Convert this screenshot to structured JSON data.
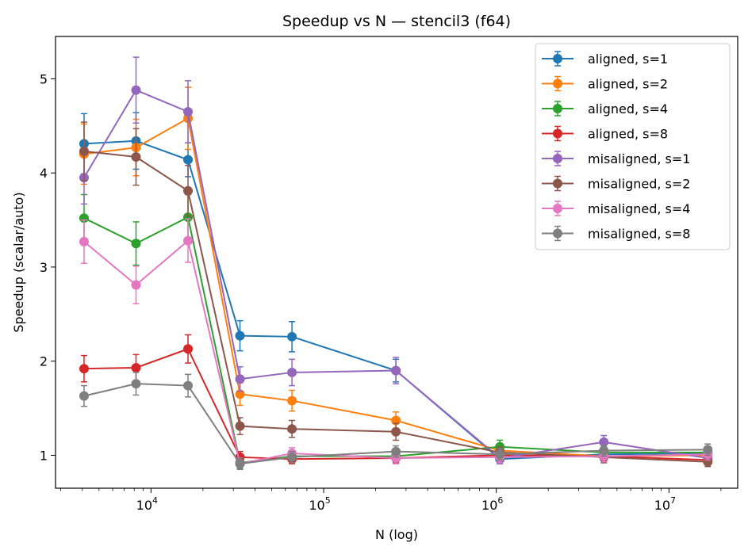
{
  "chart_data": {
    "type": "line",
    "title": "Speedup vs N — stencil3 (f64)",
    "xlabel": "N (log)",
    "ylabel": "Speedup (scalar/auto)",
    "xscale": "log",
    "xlim": [
      2800,
      25000000
    ],
    "ylim": [
      0.65,
      5.45
    ],
    "x_ticks": [
      10000,
      100000,
      1000000,
      10000000
    ],
    "x_tick_labels": [
      {
        "base": "10",
        "exp": "4"
      },
      {
        "base": "10",
        "exp": "5"
      },
      {
        "base": "10",
        "exp": "6"
      },
      {
        "base": "10",
        "exp": "7"
      }
    ],
    "y_ticks": [
      1,
      2,
      3,
      4,
      5
    ],
    "y_tick_labels": [
      "1",
      "2",
      "3",
      "4",
      "5"
    ],
    "grid": false,
    "legend_position": "top-right",
    "x": [
      4096,
      8192,
      16384,
      32768,
      65536,
      262144,
      1048576,
      4194304,
      16777216
    ],
    "series": [
      {
        "name": "aligned, s=1",
        "color": "#1f77b4",
        "values": [
          4.31,
          4.34,
          4.14,
          2.27,
          2.26,
          1.9,
          0.96,
          1.01,
          1.02
        ],
        "errors": [
          0.32,
          0.3,
          0.18,
          0.16,
          0.16,
          0.12,
          0.05,
          0.05,
          0.05
        ]
      },
      {
        "name": "aligned, s=2",
        "color": "#ff7f0e",
        "values": [
          4.2,
          4.27,
          4.58,
          1.65,
          1.58,
          1.37,
          1.05,
          0.99,
          1.0
        ],
        "errors": [
          0.32,
          0.3,
          0.33,
          0.12,
          0.11,
          0.09,
          0.06,
          0.05,
          0.05
        ]
      },
      {
        "name": "aligned, s=4",
        "color": "#2ca02c",
        "values": [
          3.52,
          3.25,
          3.53,
          0.92,
          0.99,
          0.99,
          1.09,
          1.03,
          1.03
        ],
        "errors": [
          0.25,
          0.23,
          0.24,
          0.06,
          0.06,
          0.06,
          0.07,
          0.06,
          0.06
        ]
      },
      {
        "name": "aligned, s=8",
        "color": "#d62728",
        "values": [
          1.92,
          1.93,
          2.13,
          0.98,
          0.96,
          0.97,
          1.0,
          0.99,
          0.95
        ],
        "errors": [
          0.14,
          0.14,
          0.15,
          0.06,
          0.05,
          0.05,
          0.05,
          0.05,
          0.05
        ]
      },
      {
        "name": "misaligned, s=1",
        "color": "#9467bd",
        "values": [
          3.95,
          4.88,
          4.65,
          1.81,
          1.88,
          1.9,
          0.97,
          1.14,
          0.97
        ],
        "errors": [
          0.28,
          0.35,
          0.33,
          0.13,
          0.14,
          0.14,
          0.06,
          0.07,
          0.06
        ]
      },
      {
        "name": "misaligned, s=2",
        "color": "#8c564b",
        "values": [
          4.23,
          4.17,
          3.81,
          1.31,
          1.28,
          1.25,
          1.03,
          0.98,
          0.93
        ],
        "errors": [
          0.31,
          0.3,
          0.27,
          0.09,
          0.09,
          0.09,
          0.06,
          0.06,
          0.05
        ]
      },
      {
        "name": "misaligned, s=4",
        "color": "#e377c2",
        "values": [
          3.27,
          2.81,
          3.28,
          0.91,
          1.02,
          0.97,
          0.98,
          0.99,
          1.01
        ],
        "errors": [
          0.23,
          0.2,
          0.23,
          0.06,
          0.06,
          0.06,
          0.06,
          0.06,
          0.06
        ]
      },
      {
        "name": "misaligned, s=8",
        "color": "#7f7f7f",
        "values": [
          1.63,
          1.76,
          1.74,
          0.91,
          0.98,
          1.04,
          1.01,
          1.05,
          1.06
        ],
        "errors": [
          0.11,
          0.12,
          0.12,
          0.06,
          0.06,
          0.06,
          0.06,
          0.06,
          0.06
        ]
      }
    ]
  }
}
